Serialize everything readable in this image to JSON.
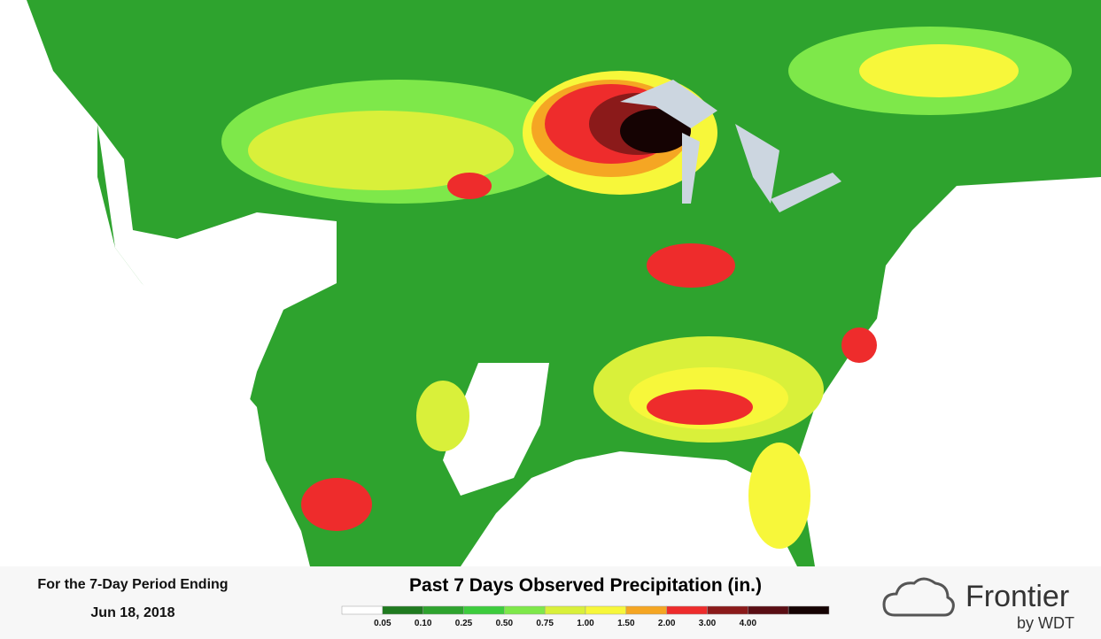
{
  "footer": {
    "period_label": "For the 7-Day Period Ending",
    "date": "Jun 18, 2018",
    "title": "Past 7 Days Observed Precipitation (in.)",
    "legend": {
      "labels": [
        "0.05",
        "0.10",
        "0.25",
        "0.50",
        "0.75",
        "1.00",
        "1.50",
        "2.00",
        "3.00",
        "4.00"
      ],
      "colors": [
        "#ffffff",
        "#1f7a1f",
        "#2ea32e",
        "#3dcc3d",
        "#7ee84a",
        "#d9f03a",
        "#f7f73a",
        "#f5a623",
        "#ee2c2c",
        "#8b1a1a",
        "#5a0e14",
        "#150303"
      ]
    }
  },
  "logo": {
    "name": "Frontier",
    "tagline": "by WDT"
  }
}
